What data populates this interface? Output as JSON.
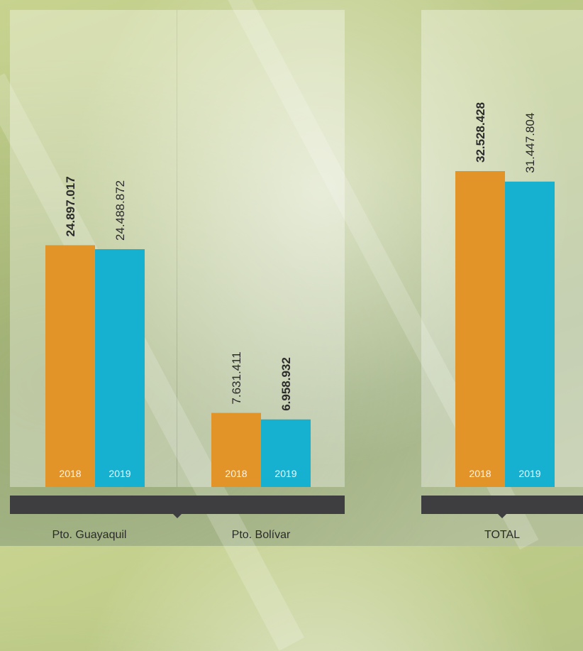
{
  "chart_data": {
    "type": "bar",
    "title": "",
    "xlabel": "",
    "ylabel": "",
    "ylim": [
      0,
      40000000
    ],
    "grid": false,
    "categories": [
      "Pto. Guayaquil",
      "Pto. Bolívar",
      "TOTAL"
    ],
    "series": [
      {
        "name": "2018",
        "color": "#e39428",
        "values": [
          24897017,
          7631411,
          32528428
        ],
        "labels": [
          "24.897.017",
          "7.631.411",
          "32.528.428"
        ],
        "bold": [
          true,
          false,
          true
        ]
      },
      {
        "name": "2019",
        "color": "#16b1d1",
        "values": [
          24488872,
          6958932,
          31447804
        ],
        "labels": [
          "24.488.872",
          "6.958.932",
          "31.447.804"
        ],
        "bold": [
          false,
          true,
          false
        ]
      }
    ]
  }
}
